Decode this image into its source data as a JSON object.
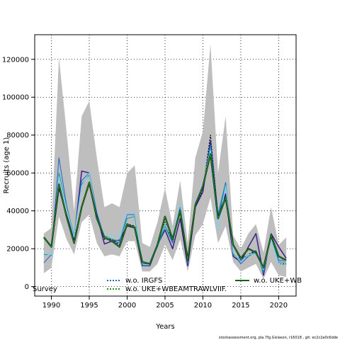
{
  "chart_data": {
    "type": "line",
    "xlabel": "Years",
    "ylabel": "Recruits (age 1)",
    "xlim": [
      1987.8,
      2022.3
    ],
    "ylim": [
      -5000,
      133000
    ],
    "xticks": [
      1990,
      1995,
      2000,
      2005,
      2010,
      2015,
      2020
    ],
    "yticks": [
      0,
      20000,
      40000,
      60000,
      80000,
      100000,
      120000
    ],
    "grid": true,
    "band": {
      "color": "#bebebe",
      "x": [
        1989,
        1990,
        1991,
        1992,
        1993,
        1994,
        1995,
        1996,
        1997,
        1998,
        1999,
        2000,
        2001,
        2002,
        2003,
        2004,
        2005,
        2006,
        2007,
        2008,
        2009,
        2010,
        2011,
        2012,
        2013,
        2014,
        2015,
        2016,
        2017,
        2018,
        2019,
        2020,
        2021
      ],
      "upper": [
        28000,
        31000,
        121000,
        82000,
        40000,
        90000,
        98000,
        68000,
        42000,
        44000,
        42000,
        60000,
        64000,
        23000,
        21000,
        34000,
        52000,
        32000,
        56000,
        23000,
        68000,
        82000,
        128000,
        60000,
        90000,
        27000,
        20000,
        28000,
        33000,
        18000,
        42000,
        22000,
        26000
      ],
      "lower": [
        7000,
        10000,
        37000,
        25000,
        17000,
        34000,
        38000,
        23000,
        16000,
        17000,
        16000,
        24000,
        24000,
        8000,
        8000,
        12000,
        22000,
        14000,
        25000,
        8000,
        27000,
        33000,
        47000,
        23000,
        32000,
        13000,
        8000,
        10000,
        12000,
        4000,
        13000,
        6000,
        5000
      ]
    },
    "series": [
      {
        "name": "",
        "color": "#000000",
        "dash": "2,2",
        "width": 1.2,
        "values": [
          26000,
          21000,
          52000,
          38000,
          25000,
          42000,
          54000,
          38000,
          25000,
          25000,
          22000,
          33000,
          32000,
          13000,
          12000,
          22000,
          34000,
          24000,
          41000,
          15000,
          42000,
          51000,
          80000,
          37000,
          48000,
          22000,
          14000,
          17000,
          19000,
          8000,
          26000,
          12000,
          12000
        ]
      },
      {
        "name": "",
        "color": "#3b1f8c",
        "dash": "",
        "width": 1.5,
        "values": [
          26000,
          21000,
          52000,
          38000,
          25000,
          61000,
          60000,
          38000,
          22500,
          24000,
          24500,
          32000,
          31000,
          11000,
          11000,
          22000,
          30000,
          20000,
          36000,
          11000,
          42000,
          50000,
          77000,
          37000,
          49000,
          16000,
          13000,
          21000,
          28000,
          6000,
          28000,
          21000,
          15000
        ]
      },
      {
        "name": "",
        "color": "#1e64c8",
        "dash": "",
        "width": 1,
        "values": [
          12500,
          17000,
          68000,
          43000,
          26000,
          56000,
          60000,
          39000,
          26000,
          24000,
          23000,
          38000,
          38000,
          11000,
          11000,
          22000,
          32000,
          23000,
          42000,
          12000,
          44000,
          52000,
          75000,
          38000,
          55000,
          18000,
          12000,
          16000,
          19000,
          7000,
          28000,
          14000,
          14000
        ]
      },
      {
        "name": "",
        "color": "#00a0a0",
        "dash": "",
        "width": 1,
        "values": [
          17000,
          16500,
          60000,
          42000,
          27000,
          54000,
          59000,
          37000,
          27000,
          25000,
          24000,
          36000,
          37000,
          12000,
          12000,
          21000,
          32000,
          24000,
          44000,
          13000,
          44000,
          53000,
          74000,
          36000,
          54000,
          17000,
          14000,
          16000,
          18000,
          8000,
          27000,
          13000,
          13000
        ]
      },
      {
        "name": "",
        "color": "#87ceeb",
        "dash": "",
        "width": 1.3,
        "values": [
          16000,
          17000,
          58000,
          41000,
          26000,
          53000,
          60000,
          36000,
          27000,
          27500,
          26000,
          39000,
          39000,
          13000,
          13000,
          23000,
          33000,
          26000,
          44000,
          14000,
          43000,
          54000,
          72000,
          30000,
          53000,
          18000,
          13000,
          17000,
          17000,
          9000,
          25000,
          12000,
          11000
        ]
      },
      {
        "name": "",
        "color": "#006400",
        "dash": "",
        "width": 1.5,
        "values": [
          26000,
          21000,
          54000,
          37000,
          23000,
          42000,
          55000,
          36000,
          26000,
          24000,
          21000,
          33000,
          31000,
          13000,
          12000,
          22000,
          37000,
          25000,
          40000,
          14000,
          43000,
          53000,
          70000,
          36000,
          47000,
          22000,
          15000,
          20000,
          18000,
          10000,
          27000,
          16000,
          14000
        ]
      },
      {
        "name": "",
        "color": "#000000",
        "dash": "",
        "width": 2.2,
        "values": [
          26000,
          21000,
          54000,
          37000,
          23000,
          42000,
          55000,
          36000,
          26000,
          24000,
          21000,
          33000,
          31000,
          13000,
          12000,
          22000,
          37000,
          25000,
          40000,
          14000,
          43000,
          53000,
          70000,
          36000,
          47000,
          22000,
          15000,
          20000,
          18000,
          10000,
          27000,
          16000,
          14000
        ]
      },
      {
        "name": "",
        "color": "#228b22",
        "dash": "",
        "width": 1.3,
        "values": [
          26000,
          21000,
          54000,
          37000,
          23000,
          42000,
          55000,
          36000,
          26000,
          24000,
          21000,
          33000,
          31000,
          13000,
          12000,
          22000,
          37000,
          25000,
          40000,
          14000,
          43000,
          53000,
          70000,
          36000,
          47000,
          22000,
          15000,
          20000,
          18000,
          10000,
          27000,
          16000,
          14000
        ]
      }
    ],
    "legend": {
      "placement": "bottom",
      "entries": [
        {
          "label": "Survey",
          "color": "#000000",
          "dash": "",
          "line": false
        },
        {
          "label": "w.o. IRGFS",
          "color": "#1e64c8",
          "dash": "2,2",
          "line": true
        },
        {
          "label": "w.o. UKE+WBEAMTRAWLVIIF.",
          "color": "#228b22",
          "dash": "2,2",
          "line": true
        },
        {
          "label": "w.o. UKE+WB",
          "color": "#006400",
          "dash": "",
          "line": true
        }
      ]
    },
    "footer": "stockassessment.org, pla.7fg.Gislason, r16018 , git: ec2c2a0c6dde"
  }
}
